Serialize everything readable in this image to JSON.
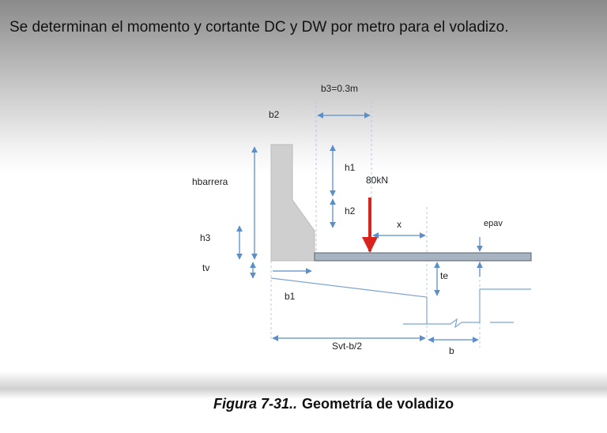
{
  "header": {
    "text": "Se determinan el momento y cortante DC y DW por metro para el voladizo."
  },
  "diagram": {
    "labels": {
      "b3": "b3=0.3m",
      "b2": "b2",
      "h1": "h1",
      "load": "80kN",
      "hbarrera": "hbarrera",
      "h2": "h2",
      "x": "x",
      "epav": "epav",
      "h3": "h3",
      "tv": "tv",
      "te": "te",
      "b1": "b1",
      "svt": "Svt-b/2",
      "b": "b"
    }
  },
  "caption": {
    "figure": "Figura 7-31..",
    "title": "Geometría de voladizo"
  }
}
